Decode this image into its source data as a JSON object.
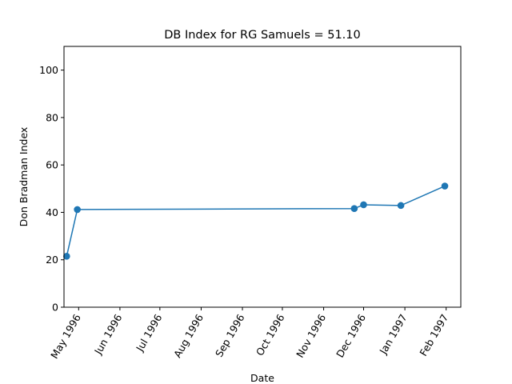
{
  "chart_data": {
    "type": "line",
    "title": "DB Index for RG Samuels = 51.10",
    "xlabel": "Date",
    "ylabel": "Don Bradman Index",
    "ylim": [
      0,
      110
    ],
    "xlim": [
      "1996-04-20",
      "1997-02-12"
    ],
    "yticks": [
      0,
      20,
      40,
      60,
      80,
      100
    ],
    "xticks": [
      {
        "date": "1996-05-01",
        "label": "May 1996"
      },
      {
        "date": "1996-06-01",
        "label": "Jun 1996"
      },
      {
        "date": "1996-07-01",
        "label": "Jul 1996"
      },
      {
        "date": "1996-08-01",
        "label": "Aug 1996"
      },
      {
        "date": "1996-09-01",
        "label": "Sep 1996"
      },
      {
        "date": "1996-10-01",
        "label": "Oct 1996"
      },
      {
        "date": "1996-11-01",
        "label": "Nov 1996"
      },
      {
        "date": "1996-12-01",
        "label": "Dec 1996"
      },
      {
        "date": "1997-01-01",
        "label": "Jan 1997"
      },
      {
        "date": "1997-02-01",
        "label": "Feb 1997"
      }
    ],
    "grid": false,
    "series": [
      {
        "color": "#1f77b4",
        "x": [
          "1996-04-22",
          "1996-04-30",
          "1996-11-24",
          "1996-12-01",
          "1996-12-29",
          "1997-01-31"
        ],
        "y": [
          21.5,
          41.2,
          41.6,
          43.2,
          42.9,
          51.1
        ]
      }
    ]
  }
}
